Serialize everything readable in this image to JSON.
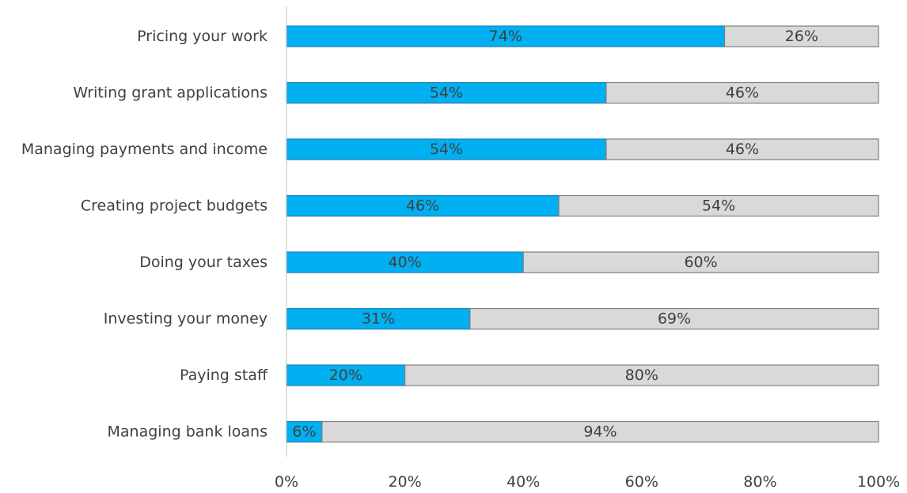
{
  "chart_data": {
    "type": "bar",
    "orientation": "horizontal",
    "stacked": true,
    "categories": [
      "Pricing your work",
      "Writing grant applications",
      "Managing payments and income",
      "Creating project budgets",
      "Doing your taxes",
      "Investing your money",
      "Paying staff",
      "Managing bank loans"
    ],
    "series": [
      {
        "values": [
          74,
          54,
          54,
          46,
          40,
          31,
          20,
          6
        ],
        "color": "#00b0f0"
      },
      {
        "values": [
          26,
          46,
          46,
          54,
          60,
          69,
          80,
          94
        ],
        "color": "#d9d9d9"
      }
    ],
    "value_labels": [
      [
        "74%",
        "54%",
        "54%",
        "46%",
        "40%",
        "31%",
        "20%",
        "6%"
      ],
      [
        "26%",
        "46%",
        "46%",
        "54%",
        "60%",
        "69%",
        "80%",
        "94%"
      ]
    ],
    "xaxis": {
      "ticks": [
        0,
        20,
        40,
        60,
        80,
        100
      ],
      "tick_labels": [
        "0%",
        "20%",
        "40%",
        "60%",
        "80%",
        "100%"
      ]
    },
    "xlim": [
      0,
      100
    ],
    "title": "",
    "xlabel": "",
    "ylabel": "",
    "grid": false,
    "legend": "none"
  }
}
